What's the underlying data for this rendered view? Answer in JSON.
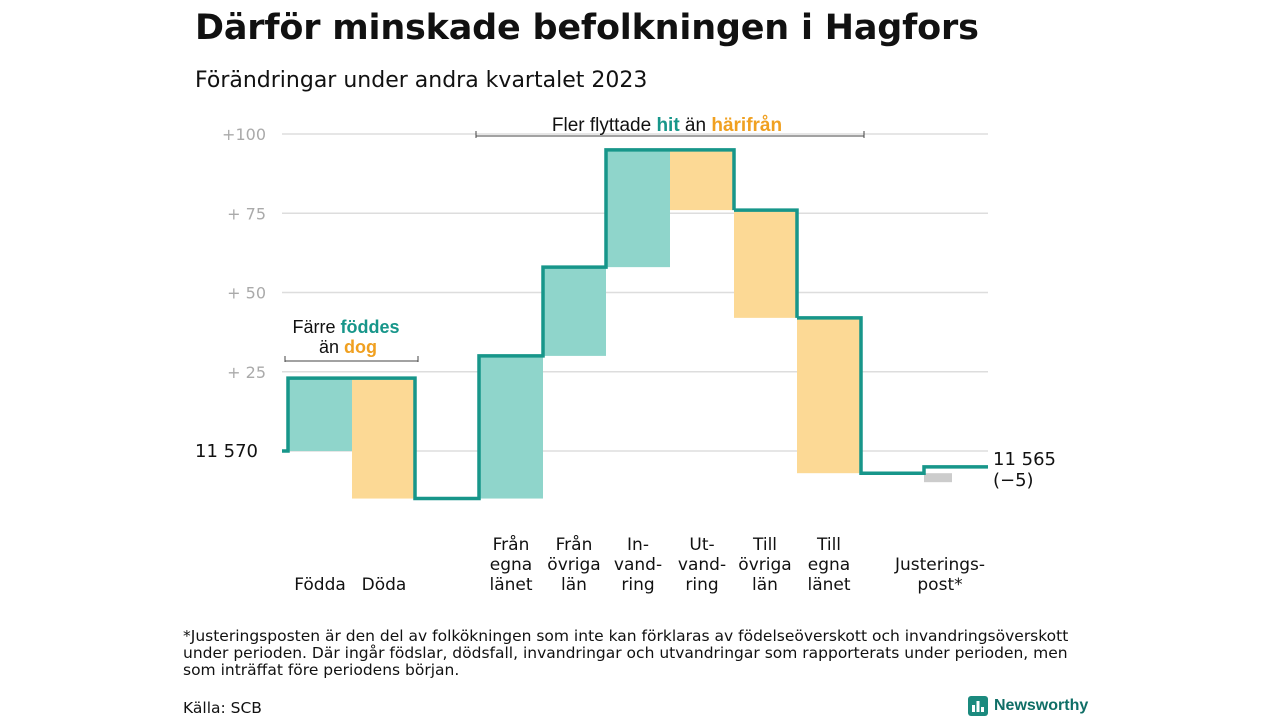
{
  "title": "Därför minskade befolkningen i Hagfors",
  "subtitle": "Förändringar under andra kvartalet 2023",
  "chart_data": {
    "type": "bar",
    "subtype": "waterfall",
    "start_label": "11  570",
    "end_label": "11 565",
    "end_change_label": "(−5)",
    "ylim": [
      -16,
      100
    ],
    "yticks": [
      {
        "value": 100,
        "label": "+100"
      },
      {
        "value": 75,
        "label": "+  75"
      },
      {
        "value": 50,
        "label": "+  50"
      },
      {
        "value": 25,
        "label": "+  25"
      },
      {
        "value": 0,
        "label": ""
      }
    ],
    "grid": true,
    "categories": [
      {
        "label": "Födda",
        "value": 23
      },
      {
        "label": "Döda",
        "value": -38
      },
      {
        "label": "Från egna länet",
        "value": 45
      },
      {
        "label": "Från övriga län",
        "value": 28
      },
      {
        "label": "In-vand-ring",
        "value": 37
      },
      {
        "label": "Ut-vand-ring",
        "value": -19
      },
      {
        "label": "Till övriga län",
        "value": -34
      },
      {
        "label": "Till egna länet",
        "value": -49
      },
      {
        "label": "Justerings-post*",
        "value": 2
      }
    ],
    "category_label_lines": [
      [
        "Födda"
      ],
      [
        "Döda"
      ],
      [
        "Från",
        "egna",
        "länet"
      ],
      [
        "Från",
        "övriga",
        "län"
      ],
      [
        "In-",
        "vand-",
        "ring"
      ],
      [
        "Ut-",
        "vand-",
        "ring"
      ],
      [
        "Till",
        "övriga",
        "län"
      ],
      [
        "Till",
        "egna",
        "länet"
      ],
      [
        "Justerings-",
        "post*"
      ]
    ],
    "annotations": {
      "birth": {
        "prefix": "Färre",
        "highlight1": "föddes",
        "middle": "än",
        "highlight2": "dog"
      },
      "migration": {
        "prefix": "Fler flyttade",
        "highlight1": "hit",
        "middle": "än",
        "highlight2": "härifrån"
      }
    },
    "colors": {
      "increase": "#8fd5cb",
      "decrease": "#fcd995",
      "adjustment": "#cccccc",
      "line": "#17968a",
      "highlight_in": "#17968a",
      "highlight_out": "#f0a020",
      "grid": "#dddddd",
      "tick": "#aaaaaa"
    }
  },
  "footnote": "*Justeringsposten är den del av folkökningen som inte kan förklaras av födelseöverskott och invandringsöverskott under perioden. Där ingår födslar, dödsfall, invandringar och utvandringar som rapporterats under perioden, men som inträffat före periodens början.",
  "source": "Källa: SCB",
  "brand": {
    "name": "Newsworthy",
    "icon": "newsworthy-logo-icon"
  }
}
